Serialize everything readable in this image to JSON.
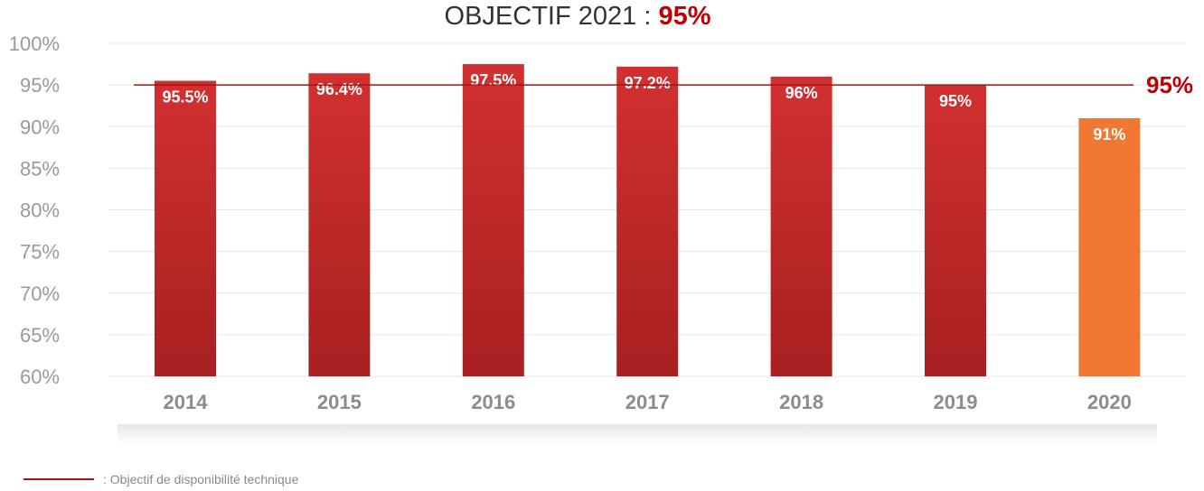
{
  "title": {
    "prefix": "OBJECTIF 2021 : ",
    "highlight": "95%"
  },
  "chart_data": {
    "type": "bar",
    "categories": [
      "2014",
      "2015",
      "2016",
      "2017",
      "2018",
      "2019",
      "2020"
    ],
    "values": [
      95.5,
      96.4,
      97.5,
      97.2,
      96,
      95,
      91
    ],
    "data_labels": [
      "95.5%",
      "96.4%",
      "97.5%",
      "97.2%",
      "96%",
      "95%",
      "91%"
    ],
    "ylim": [
      60,
      100
    ],
    "yticks": [
      60,
      65,
      70,
      75,
      80,
      85,
      90,
      95,
      100
    ],
    "ytick_labels": [
      "60%",
      "65%",
      "70%",
      "75%",
      "80%",
      "85%",
      "90%",
      "95%",
      "100%"
    ],
    "grid": true,
    "bar_colors": [
      "#b52828",
      "#b52828",
      "#b52828",
      "#b52828",
      "#b52828",
      "#b52828",
      "#f07834"
    ],
    "target": {
      "value": 95,
      "label": "95%",
      "color": "#a31515"
    }
  },
  "legend": {
    "label": ": Objectif de disponibilité technique",
    "color": "#a31515"
  }
}
